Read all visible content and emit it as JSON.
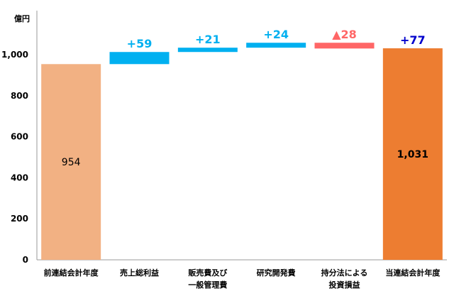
{
  "chart_data": {
    "type": "waterfall",
    "unit_label": "億円",
    "y_ticks": [
      "0",
      "200",
      "400",
      "600",
      "800",
      "1,000"
    ],
    "y_tick_values": [
      0,
      200,
      400,
      600,
      800,
      1000
    ],
    "ylim": [
      0,
      1130
    ],
    "grid": false,
    "colors": {
      "start": "#F2B183",
      "end": "#ED7D31",
      "increase": "#00B0F0",
      "decrease": "#FF6666",
      "end_delta_text": "#0000CC",
      "axis": "#999999",
      "text": "#000000"
    },
    "bars": [
      {
        "category": "前連結会計年度",
        "kind": "total",
        "value": 954,
        "label": "954",
        "delta_label": ""
      },
      {
        "category": "売上総利益",
        "kind": "increase",
        "value": 59,
        "label": "",
        "delta_label": "+59"
      },
      {
        "category": "販売費及び\n一般管理費",
        "kind": "increase",
        "value": 21,
        "label": "",
        "delta_label": "+21"
      },
      {
        "category": "研究開発費",
        "kind": "increase",
        "value": 24,
        "label": "",
        "delta_label": "+24"
      },
      {
        "category": "持分法による\n投資損益",
        "kind": "decrease",
        "value": -28,
        "label": "",
        "delta_label": "▲28"
      },
      {
        "category": "当連結会計年度",
        "kind": "total",
        "value": 1031,
        "label": "1,031",
        "delta_label": "+77"
      }
    ]
  }
}
